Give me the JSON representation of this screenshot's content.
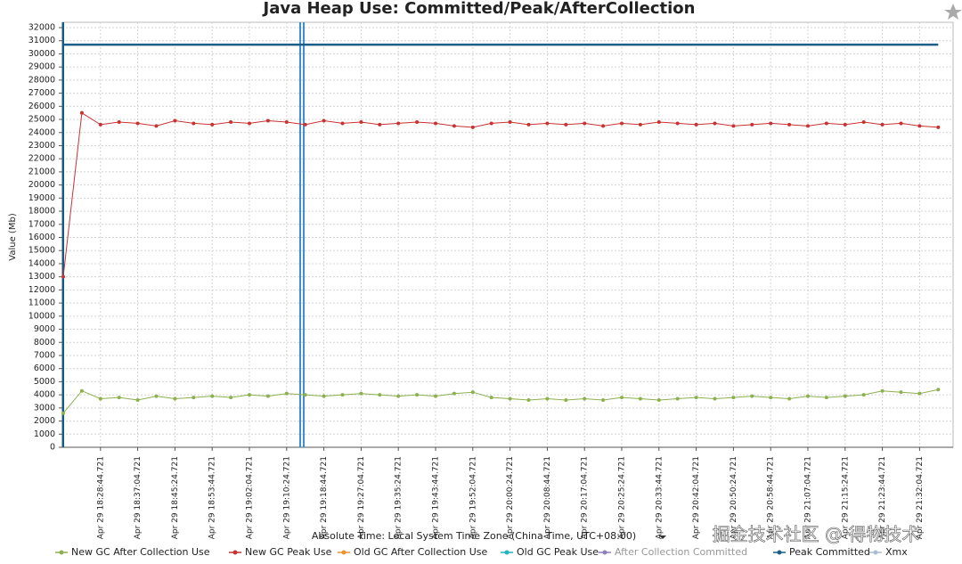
{
  "chart_data": {
    "type": "line",
    "title": "Java Heap Use: Committed/Peak/AfterCollection",
    "y_label": "Value (Mb)",
    "x_label": "Absolute Time: Local System Time Zone (China Time, UTC+08:00)",
    "watermark": "掘金技术社区 @ 得物技术",
    "categories": [
      null,
      null,
      "Apr 29 18:28:44.721",
      null,
      "Apr 29 18:37:04.721",
      null,
      "Apr 29 18:45:24.721",
      null,
      "Apr 29 18:53:44.721",
      null,
      "Apr 29 19:02:04.721",
      null,
      "Apr 29 19:10:24.721",
      null,
      "Apr 29 19:18:44.721",
      null,
      "Apr 29 19:27:04.721",
      null,
      "Apr 29 19:35:24.721",
      null,
      "Apr 29 19:43:44.721",
      null,
      "Apr 29 19:52:04.721",
      null,
      "Apr 29 20:00:24.721",
      null,
      "Apr 29 20:08:44.721",
      null,
      "Apr 29 20:17:04.721",
      null,
      "Apr 29 20:25:24.721",
      null,
      "Apr 29 20:33:44.721",
      null,
      "Apr 29 20:42:04.721",
      null,
      "Apr 29 20:50:24.721",
      null,
      "Apr 29 20:58:44.721",
      null,
      "Apr 29 21:07:04.721",
      null,
      "Apr 29 21:15:24.721",
      null,
      "Apr 29 21:23:44.721",
      null,
      "Apr 29 21:32:04.721",
      null
    ],
    "ylim": [
      0,
      32000
    ],
    "yticks": [
      0,
      1000,
      2000,
      3000,
      4000,
      5000,
      6000,
      7000,
      8000,
      9000,
      10000,
      11000,
      12000,
      13000,
      14000,
      15000,
      16000,
      17000,
      18000,
      19000,
      20000,
      21000,
      22000,
      23000,
      24000,
      25000,
      26000,
      27000,
      28000,
      29000,
      30000,
      31000,
      32000
    ],
    "grid": true,
    "series": [
      {
        "name": "New GC After Collection Use",
        "color": "#8db04f",
        "markers": true,
        "values": [
          2600,
          4300,
          3700,
          3800,
          3600,
          3900,
          3700,
          3800,
          3900,
          3800,
          4000,
          3900,
          4100,
          4000,
          3900,
          4000,
          4100,
          4000,
          3900,
          4000,
          3900,
          4100,
          4200,
          3800,
          3700,
          3600,
          3700,
          3600,
          3700,
          3600,
          3800,
          3700,
          3600,
          3700,
          3800,
          3700,
          3800,
          3900,
          3800,
          3700,
          3900,
          3800,
          3900,
          4000,
          4300,
          4200,
          4100,
          4400
        ]
      },
      {
        "name": "New GC Peak Use",
        "color": "#c83232",
        "markers": true,
        "values": [
          13000,
          25500,
          24600,
          24800,
          24700,
          24500,
          24900,
          24700,
          24600,
          24800,
          24700,
          24900,
          24800,
          24600,
          24900,
          24700,
          24800,
          24600,
          24700,
          24800,
          24700,
          24500,
          24400,
          24700,
          24800,
          24600,
          24700,
          24600,
          24700,
          24500,
          24700,
          24600,
          24800,
          24700,
          24600,
          24700,
          24500,
          24600,
          24700,
          24600,
          24500,
          24700,
          24600,
          24800,
          24600,
          24700,
          24500,
          24400
        ]
      },
      {
        "name": "Old GC After Collection Use",
        "color": "#f0922b",
        "values": [
          null,
          null,
          null,
          null,
          null,
          null,
          null,
          null,
          null,
          null,
          null,
          null,
          null,
          null,
          null,
          null,
          null,
          null,
          null,
          null,
          null,
          null,
          null,
          null,
          null,
          null,
          null,
          null,
          null,
          null,
          null,
          null,
          null,
          null,
          null,
          null,
          null,
          null,
          null,
          null,
          null,
          null,
          null,
          null,
          null,
          null,
          null,
          null
        ]
      },
      {
        "name": "Old GC Peak Use",
        "color": "#1fb5c4",
        "values": [
          null,
          null,
          null,
          null,
          null,
          null,
          null,
          null,
          null,
          null,
          null,
          null,
          null,
          null,
          null,
          null,
          null,
          null,
          null,
          null,
          null,
          null,
          null,
          null,
          null,
          null,
          null,
          null,
          null,
          null,
          null,
          null,
          null,
          null,
          null,
          null,
          null,
          null,
          null,
          null,
          null,
          null,
          null,
          null,
          null,
          null,
          null,
          null
        ]
      },
      {
        "name": "After Collection Committed",
        "color": "#8e7cc3",
        "disabled": true,
        "values": [
          null,
          null,
          null,
          null,
          null,
          null,
          null,
          null,
          null,
          null,
          null,
          null,
          null,
          null,
          null,
          null,
          null,
          null,
          null,
          null,
          null,
          null,
          null,
          null,
          null,
          null,
          null,
          null,
          null,
          null,
          null,
          null,
          null,
          null,
          null,
          null,
          null,
          null,
          null,
          null,
          null,
          null,
          null,
          null,
          null,
          null,
          null,
          null
        ]
      },
      {
        "name": "Peak Committed",
        "color": "#1b5e8a",
        "values": [
          30700,
          30700,
          30700,
          30700,
          30700,
          30700,
          30700,
          30700,
          30700,
          30700,
          30700,
          30700,
          30700,
          30700,
          30700,
          30700,
          30700,
          30700,
          30700,
          30700,
          30700,
          30700,
          30700,
          30700,
          30700,
          30700,
          30700,
          30700,
          30700,
          30700,
          30700,
          30700,
          30700,
          30700,
          30700,
          30700,
          30700,
          30700,
          30700,
          30700,
          30700,
          30700,
          30700,
          30700,
          30700,
          30700,
          30700,
          30700
        ]
      },
      {
        "name": "Xmx",
        "color": "#a9bcd6",
        "values": [
          null,
          null,
          null,
          null,
          null,
          null,
          null,
          null,
          null,
          null,
          null,
          null,
          null,
          null,
          null,
          null,
          null,
          null,
          null,
          null,
          null,
          null,
          null,
          null,
          null,
          null,
          null,
          null,
          null,
          null,
          null,
          null,
          null,
          null,
          null,
          null,
          null,
          null,
          null,
          null,
          null,
          null,
          null,
          null,
          null,
          null,
          null,
          null
        ]
      }
    ]
  }
}
